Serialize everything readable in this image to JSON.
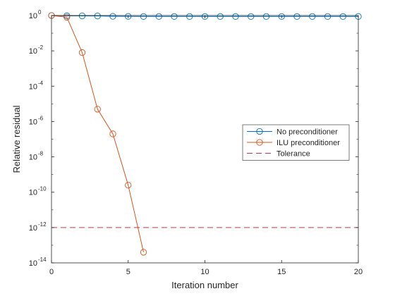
{
  "chart_data": {
    "type": "line",
    "xlabel": "Iteration number",
    "ylabel": "Relative residual",
    "x_ticks": [
      0,
      5,
      10,
      15,
      20
    ],
    "y_ticks": [
      {
        "value": 1,
        "base": "10",
        "exp": "0"
      },
      {
        "value": 0.01,
        "base": "10",
        "exp": "-2"
      },
      {
        "value": 0.0001,
        "base": "10",
        "exp": "-4"
      },
      {
        "value": 1e-06,
        "base": "10",
        "exp": "-6"
      },
      {
        "value": 1e-08,
        "base": "10",
        "exp": "-8"
      },
      {
        "value": 1e-10,
        "base": "10",
        "exp": "-10"
      },
      {
        "value": 1e-12,
        "base": "10",
        "exp": "-12"
      },
      {
        "value": 1e-14,
        "base": "10",
        "exp": "-14"
      }
    ],
    "xlim": [
      0,
      20
    ],
    "ylim": [
      1e-14,
      1
    ],
    "yscale": "log",
    "grid": false,
    "legend_position": "right",
    "series": [
      {
        "name": "No preconditioner",
        "color": "#0072BD",
        "marker": "circle",
        "x": [
          0,
          1,
          2,
          3,
          4,
          5,
          6,
          7,
          8,
          9,
          10,
          11,
          12,
          13,
          14,
          15,
          16,
          17,
          18,
          19,
          20
        ],
        "y": [
          1,
          0.96,
          0.95,
          0.94,
          0.9,
          0.89,
          0.88,
          0.88,
          0.88,
          0.88,
          0.88,
          0.88,
          0.88,
          0.88,
          0.88,
          0.88,
          0.88,
          0.88,
          0.88,
          0.88,
          0.88
        ]
      },
      {
        "name": "ILU preconditioner",
        "color": "#D95319",
        "marker": "circle",
        "x": [
          0,
          1,
          2,
          3,
          4,
          5,
          6
        ],
        "y": [
          1,
          0.8,
          0.008,
          5e-06,
          2e-07,
          2.5e-10,
          4e-14
        ]
      },
      {
        "name": "Tolerance",
        "color": "#C0394D",
        "marker": "none",
        "dash": "dashed",
        "x": [
          0,
          20
        ],
        "y": [
          1e-12,
          1e-12
        ]
      }
    ]
  }
}
